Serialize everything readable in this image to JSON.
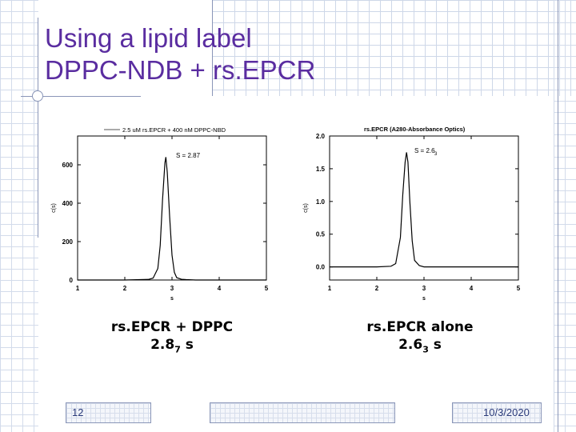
{
  "slide": {
    "title_line1": "Using a lipid label",
    "title_line2": "DPPC-NDB + rs.EPCR",
    "page_number": "12",
    "date": "10/3/2020"
  },
  "captions": {
    "left_line1": "rs.EPCR + DPPC",
    "left_value": "2.8",
    "left_sub": "7",
    "left_unit": " s",
    "right_line1": "rs.EPCR alone",
    "right_value": "2.6",
    "right_sub": "3",
    "right_unit": " s"
  },
  "chart_data": [
    {
      "type": "line",
      "title": "",
      "legend": [
        "2.5 uM rs.EPCR + 400 nM DPPC-NBD"
      ],
      "legend_placement": "top",
      "annotation": "S = 2.87",
      "xlabel": "s",
      "ylabel": "c(s)",
      "xlim": [
        1,
        5
      ],
      "ylim": [
        0,
        750
      ],
      "xticks": [
        "1",
        "2",
        "3",
        "4",
        "5"
      ],
      "yticks": [
        "0",
        "200",
        "400",
        "600"
      ],
      "series": [
        {
          "x": [
            1.0,
            2.0,
            2.5,
            2.6,
            2.7,
            2.75,
            2.8,
            2.85,
            2.87,
            2.9,
            2.95,
            3.0,
            3.05,
            3.1,
            3.2,
            3.3,
            3.5,
            4.0,
            5.0
          ],
          "values": [
            0,
            0,
            3,
            10,
            60,
            180,
            420,
            610,
            640,
            560,
            330,
            130,
            40,
            12,
            4,
            2,
            0,
            0,
            0
          ]
        }
      ]
    },
    {
      "type": "line",
      "title": "rs.EPCR (A280-Absorbance Optics)",
      "annotation_main": "S = 2.6",
      "annotation_sub": "3",
      "xlabel": "s",
      "ylabel": "c(s)",
      "xlim": [
        1,
        5
      ],
      "ylim": [
        -0.2,
        2.0
      ],
      "xticks": [
        "1",
        "2",
        "3",
        "4",
        "5"
      ],
      "yticks": [
        "0.0",
        "0.5",
        "1.0",
        "1.5",
        "2.0"
      ],
      "series": [
        {
          "x": [
            1.0,
            2.0,
            2.3,
            2.4,
            2.5,
            2.55,
            2.6,
            2.63,
            2.66,
            2.7,
            2.75,
            2.8,
            2.9,
            3.0,
            3.5,
            4.0,
            5.0
          ],
          "values": [
            0,
            0,
            0.01,
            0.05,
            0.45,
            1.1,
            1.6,
            1.75,
            1.6,
            1.0,
            0.4,
            0.1,
            0.02,
            0,
            0,
            0,
            0
          ]
        }
      ]
    }
  ],
  "colors": {
    "title": "#5a2da0",
    "footer_text": "#2a3a7a",
    "decor": "#8a96b8"
  }
}
